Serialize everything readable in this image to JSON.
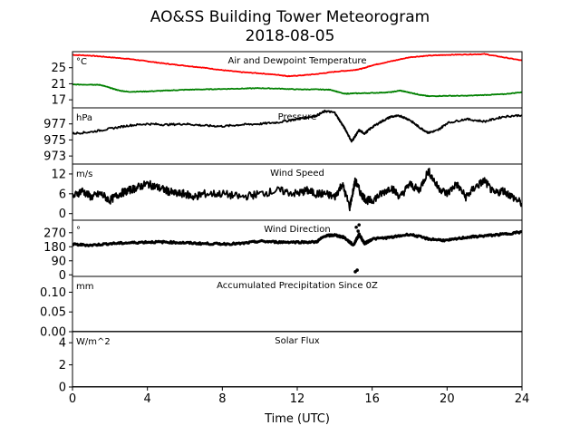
{
  "figure": {
    "title": "AO&SS Building Tower Meteorogram",
    "subtitle": "2018-08-05",
    "xlabel": "Time (UTC)"
  },
  "chart_data": {
    "type": "line",
    "x_axis": {
      "label": "Time (UTC)",
      "range": [
        0,
        24
      ],
      "ticks": [
        0,
        4,
        8,
        12,
        16,
        20,
        24
      ]
    },
    "panels": [
      {
        "id": "temp",
        "title": "Air and Dewpoint Temperature",
        "unit": "°C",
        "ylim": [
          15,
          29
        ],
        "yticks": [
          17,
          21,
          25
        ],
        "series": [
          {
            "color": "#ff0000",
            "x": [
              0,
              1,
              2,
              3,
              4,
              5,
              6,
              7,
              8,
              9,
              10,
              11,
              11.5,
              12,
              13,
              14,
              15,
              15.5,
              16,
              17,
              18,
              19,
              20,
              21,
              22,
              23,
              24
            ],
            "y": [
              28.2,
              28.0,
              27.6,
              27.2,
              26.6,
              26.0,
              25.5,
              25.0,
              24.4,
              23.9,
              23.6,
              23.2,
              22.9,
              23.0,
              23.4,
              24.0,
              24.4,
              24.8,
              25.6,
              26.6,
              27.6,
              28.0,
              28.2,
              28.3,
              28.4,
              27.6,
              26.8
            ]
          },
          {
            "color": "#008000",
            "x": [
              0,
              1,
              1.5,
              2,
              2.5,
              3,
              4,
              5,
              6,
              7,
              8,
              9,
              10,
              11,
              12,
              13,
              13.8,
              14.5,
              15,
              16,
              17,
              17.5,
              18,
              18.5,
              19,
              20,
              21,
              22,
              23,
              24
            ],
            "y": [
              20.8,
              20.8,
              20.7,
              20.0,
              19.3,
              19.0,
              19.1,
              19.3,
              19.5,
              19.6,
              19.7,
              19.8,
              19.9,
              19.8,
              19.6,
              19.6,
              19.5,
              18.5,
              18.6,
              18.7,
              18.9,
              19.3,
              18.8,
              18.3,
              17.9,
              18.0,
              18.0,
              18.2,
              18.4,
              18.9
            ]
          }
        ]
      },
      {
        "id": "pressure",
        "title": "Pressure",
        "unit": "hPa",
        "ylim": [
          972,
          979
        ],
        "yticks": [
          973,
          975,
          977
        ],
        "series": [
          {
            "color": "#000000",
            "x": [
              0,
              1,
              2,
              3,
              4,
              5,
              6,
              7,
              8,
              9,
              10,
              11,
              12,
              12.5,
              13,
              13.5,
              14,
              14.3,
              14.6,
              14.9,
              15.1,
              15.3,
              15.6,
              16,
              16.5,
              17,
              17.5,
              18,
              18.5,
              19,
              19.5,
              20,
              21,
              22,
              23,
              24
            ],
            "y": [
              975.8,
              976.0,
              976.4,
              976.8,
              977.0,
              976.9,
              977.0,
              976.8,
              976.7,
              976.9,
              977.0,
              977.2,
              977.6,
              977.8,
              978.0,
              978.6,
              978.4,
              977.3,
              976.2,
              974.8,
              975.5,
              976.2,
              975.8,
              976.6,
              977.3,
              977.9,
              978.0,
              977.5,
              976.6,
              975.9,
              976.2,
              977.1,
              977.6,
              977.3,
              977.9,
              978.1
            ]
          }
        ]
      },
      {
        "id": "wind_speed",
        "title": "Wind Speed",
        "unit": "m/s",
        "ylim": [
          -2,
          15
        ],
        "yticks": [
          0,
          6,
          12
        ],
        "series": [
          {
            "color": "#000000",
            "x": [
              0,
              0.5,
              1,
              1.5,
              2,
              2.5,
              3,
              3.5,
              4,
              4.5,
              5,
              5.5,
              6,
              6.5,
              7,
              8,
              9,
              10,
              11,
              12,
              12.5,
              13,
              13.5,
              14,
              14.4,
              14.8,
              15.1,
              15.4,
              15.7,
              16,
              16.5,
              17,
              17.5,
              18,
              18.5,
              19,
              19.5,
              20,
              20.5,
              21,
              21.5,
              22,
              22.5,
              23,
              23.5,
              24
            ],
            "y": [
              5,
              7,
              5,
              6,
              4,
              6,
              7,
              8,
              9,
              8,
              7,
              6,
              6,
              5,
              6,
              6,
              5,
              6,
              7,
              6,
              7,
              6,
              6,
              5,
              9,
              2,
              10,
              6,
              4,
              4,
              6,
              8,
              5,
              9,
              7,
              13,
              8,
              6,
              9,
              5,
              8,
              10,
              6,
              7,
              5,
              3
            ]
          }
        ]
      },
      {
        "id": "wind_direction",
        "title": "Wind Direction",
        "unit": "°",
        "ylim": [
          -10,
          350
        ],
        "yticks": [
          0,
          90,
          180,
          270
        ],
        "series": [
          {
            "color": "#000000",
            "x": [
              0,
              1,
              2,
              3,
              4,
              5,
              6,
              7,
              8,
              9,
              10,
              11,
              12,
              13,
              13.5,
              14,
              14.5,
              15,
              15.3,
              15.6,
              16,
              17,
              18,
              19,
              20,
              21,
              22,
              23,
              24
            ],
            "y": [
              195,
              190,
              200,
              205,
              210,
              210,
              205,
              200,
              198,
              200,
              215,
              210,
              210,
              210,
              250,
              255,
              240,
              190,
              260,
              200,
              230,
              240,
              260,
              230,
              220,
              240,
              250,
              260,
              275
            ]
          }
        ],
        "scatter": {
          "x": [
            15.1,
            15.2,
            15.25,
            15.3,
            15.15
          ],
          "y": [
            20,
            30,
            280,
            320,
            305
          ]
        }
      },
      {
        "id": "precip",
        "title": "Accumulated Precipitation Since 0Z",
        "unit": "mm",
        "ylim": [
          0,
          0.14
        ],
        "yticks": [
          0.0,
          0.05,
          0.1
        ],
        "ytick_labels": [
          "0.00",
          "0.05",
          "0.10"
        ],
        "series": [
          {
            "color": "#000000",
            "x": [
              0,
              24
            ],
            "y": [
              0,
              0
            ]
          }
        ]
      },
      {
        "id": "solar",
        "title": "Solar Flux",
        "unit": "W/m^2",
        "ylim": [
          0,
          5
        ],
        "yticks": [
          0,
          2,
          4
        ],
        "series": [
          {
            "color": "#000000",
            "x": [
              0,
              24
            ],
            "y": [
              0,
              0
            ]
          }
        ]
      }
    ]
  }
}
